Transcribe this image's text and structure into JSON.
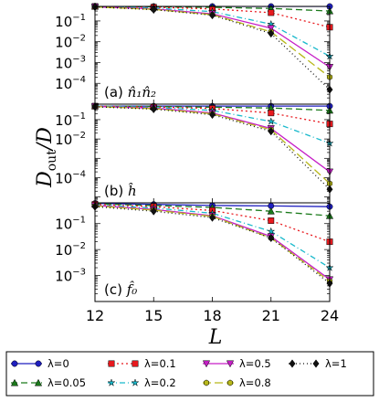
{
  "chart_data": [
    {
      "type": "line",
      "label_prefix": "(a)",
      "label_math": "n̂₁n̂₂",
      "x": [
        12,
        15,
        18,
        21,
        24
      ],
      "ylim_log10": [
        -5,
        -0.3
      ],
      "yticks": [
        {
          "label": "10",
          "exp": "−1",
          "v": -1
        },
        {
          "label": "10",
          "exp": "−2",
          "v": -2
        },
        {
          "label": "10",
          "exp": "−3",
          "v": -3
        },
        {
          "label": "10",
          "exp": "−4",
          "v": -4
        }
      ],
      "series": [
        {
          "key": "l0",
          "values": [
            0.5,
            0.5,
            0.5,
            0.5,
            0.5
          ]
        },
        {
          "key": "l005",
          "values": [
            0.5,
            0.48,
            0.45,
            0.4,
            0.3
          ]
        },
        {
          "key": "l01",
          "values": [
            0.5,
            0.46,
            0.38,
            0.25,
            0.05
          ]
        },
        {
          "key": "l02",
          "values": [
            0.5,
            0.42,
            0.28,
            0.07,
            0.002
          ]
        },
        {
          "key": "l05",
          "values": [
            0.48,
            0.38,
            0.22,
            0.045,
            0.0006
          ]
        },
        {
          "key": "l08",
          "values": [
            0.47,
            0.36,
            0.2,
            0.03,
            0.0002
          ]
        },
        {
          "key": "l1",
          "values": [
            0.47,
            0.35,
            0.19,
            0.025,
            5e-05
          ]
        }
      ]
    },
    {
      "type": "line",
      "label_prefix": "(b)",
      "label_math": "ĥ",
      "x": [
        12,
        15,
        18,
        21,
        24
      ],
      "ylim_log10": [
        -5.3,
        -0.2
      ],
      "yticks": [
        {
          "label": "10",
          "exp": "−1",
          "v": -1
        },
        {
          "label": "10",
          "exp": "−2",
          "v": -2
        },
        {
          "label": "10",
          "exp": "−4",
          "v": -4
        }
      ],
      "series": [
        {
          "key": "l0",
          "values": [
            0.5,
            0.5,
            0.5,
            0.5,
            0.5
          ]
        },
        {
          "key": "l005",
          "values": [
            0.5,
            0.48,
            0.44,
            0.4,
            0.3
          ]
        },
        {
          "key": "l01",
          "values": [
            0.5,
            0.45,
            0.38,
            0.22,
            0.06
          ]
        },
        {
          "key": "l02",
          "values": [
            0.5,
            0.43,
            0.3,
            0.08,
            0.006
          ]
        },
        {
          "key": "l05",
          "values": [
            0.48,
            0.39,
            0.22,
            0.035,
            0.0002
          ]
        },
        {
          "key": "l08",
          "values": [
            0.47,
            0.37,
            0.2,
            0.03,
            5e-05
          ]
        },
        {
          "key": "l1",
          "values": [
            0.46,
            0.35,
            0.18,
            0.025,
            2.5e-05
          ]
        }
      ]
    },
    {
      "type": "line",
      "label_prefix": "(c)",
      "label_math": "f̂₀",
      "x": [
        12,
        15,
        18,
        21,
        24
      ],
      "xticks": [
        12,
        15,
        18,
        21,
        24
      ],
      "xlabel": "L",
      "ylim_log10": [
        -4,
        -0.2
      ],
      "yticks": [
        {
          "label": "10",
          "exp": "−1",
          "v": -1
        },
        {
          "label": "10",
          "exp": "−2",
          "v": -2
        },
        {
          "label": "10",
          "exp": "−3",
          "v": -3
        }
      ],
      "series": [
        {
          "key": "l0",
          "values": [
            0.6,
            0.55,
            0.5,
            0.48,
            0.45
          ]
        },
        {
          "key": "l005",
          "values": [
            0.58,
            0.5,
            0.42,
            0.3,
            0.2
          ]
        },
        {
          "key": "l01",
          "values": [
            0.55,
            0.45,
            0.32,
            0.13,
            0.02
          ]
        },
        {
          "key": "l02",
          "values": [
            0.52,
            0.4,
            0.25,
            0.05,
            0.002
          ]
        },
        {
          "key": "l05",
          "values": [
            0.5,
            0.35,
            0.2,
            0.032,
            0.0007
          ]
        },
        {
          "key": "l08",
          "values": [
            0.48,
            0.33,
            0.19,
            0.028,
            0.0006
          ]
        },
        {
          "key": "l1",
          "values": [
            0.45,
            0.3,
            0.17,
            0.028,
            0.0005
          ]
        }
      ]
    }
  ],
  "ylabel_main": "D",
  "ylabel_sub": "out",
  "ylabel_tail": "/D",
  "legend": {
    "items": [
      {
        "key": "l0",
        "label": "λ=0",
        "color": "#1f1fbf",
        "marker": "circle",
        "dash": "",
        "row": 0,
        "col": 0
      },
      {
        "key": "l01",
        "label": "λ=0.1",
        "color": "#e8191e",
        "marker": "square",
        "dash": "2,3",
        "row": 0,
        "col": 1
      },
      {
        "key": "l05",
        "label": "λ=0.5",
        "color": "#c61ec6",
        "marker": "tri-down",
        "dash": "",
        "row": 0,
        "col": 2
      },
      {
        "key": "l1",
        "label": "λ=1",
        "color": "#111111",
        "marker": "diamond",
        "dash": "1,3",
        "row": 0,
        "col": 3
      },
      {
        "key": "l005",
        "label": "λ=0.05",
        "color": "#1b7a1b",
        "marker": "tri-up",
        "dash": "7,4",
        "row": 1,
        "col": 0
      },
      {
        "key": "l02",
        "label": "λ=0.2",
        "color": "#19b9cc",
        "marker": "star",
        "dash": "6,3,1,3",
        "row": 1,
        "col": 1
      },
      {
        "key": "l08",
        "label": "λ=0.8",
        "color": "#b8b81a",
        "marker": "hexagon",
        "dash": "9,4",
        "row": 1,
        "col": 2
      }
    ]
  }
}
